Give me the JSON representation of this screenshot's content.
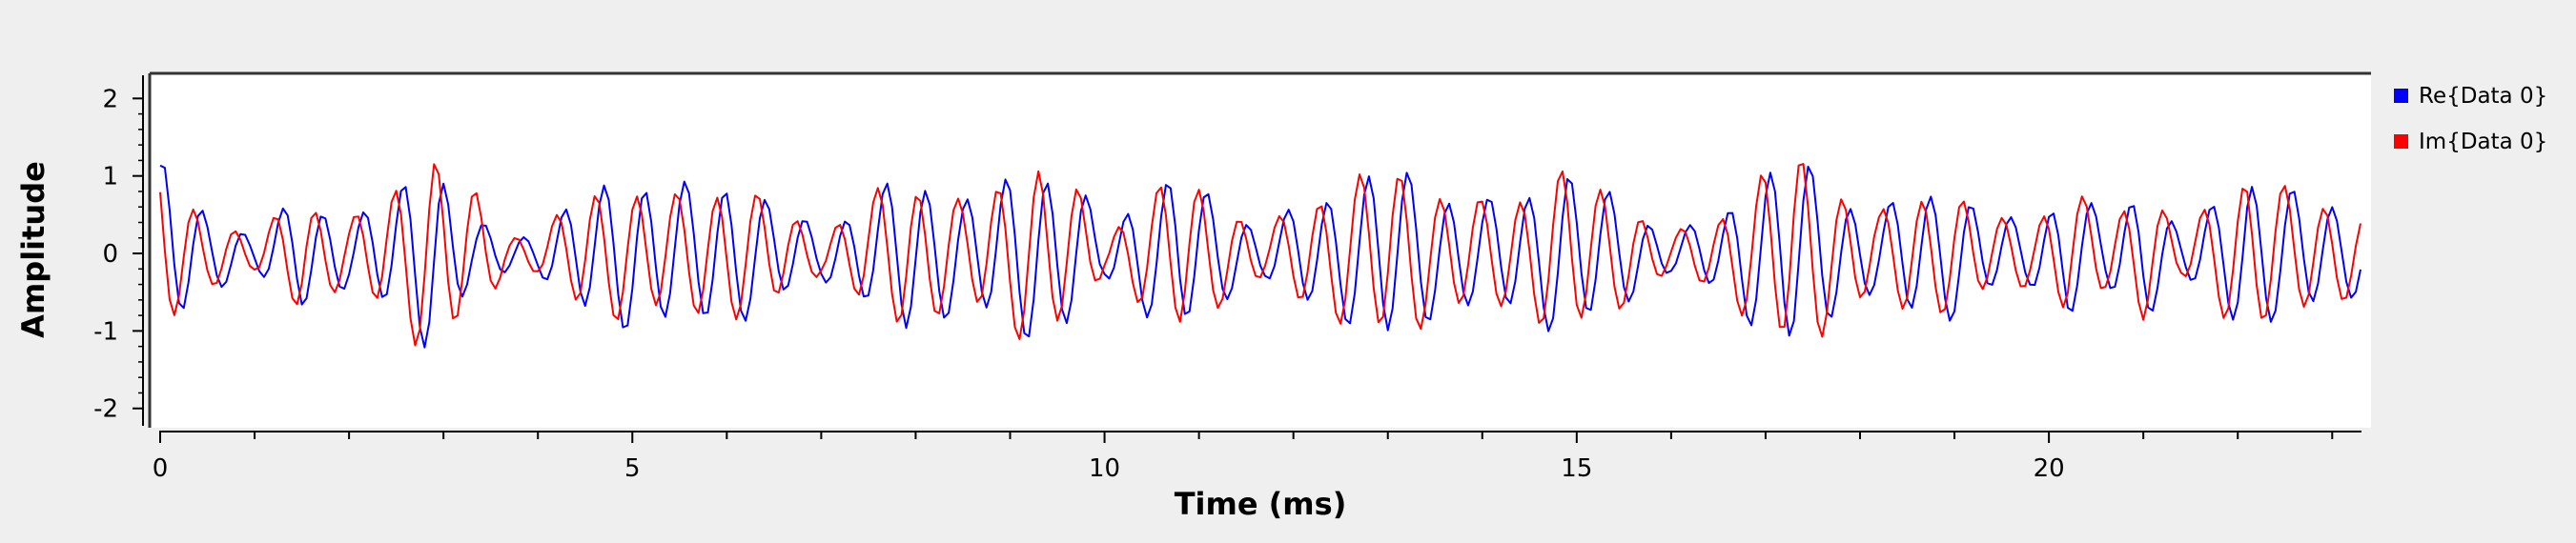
{
  "colors": {
    "background": "#efefef",
    "plot_background": "#ffffff",
    "re_series": "#0000ff",
    "im_series": "#ff0000"
  },
  "chart_data": {
    "type": "line",
    "xlabel": "Time (ms)",
    "ylabel": "Amplitude",
    "xlim": [
      0,
      23.3
    ],
    "ylim": [
      -2.2,
      2.25
    ],
    "x_ticks": [
      0,
      5,
      10,
      15,
      20
    ],
    "y_ticks": [
      2,
      1,
      0,
      -1,
      -2
    ],
    "grid": false,
    "legend_position": "right",
    "sample_spacing_ms": 0.05,
    "series": [
      {
        "name": "Re{Data 0}",
        "color": "#0000ff",
        "envelope": [
          [
            0,
            1.5
          ],
          [
            0.5,
            0.6
          ],
          [
            1,
            0.3
          ],
          [
            1.5,
            0.9
          ],
          [
            2,
            0.5
          ],
          [
            2.5,
            1.0
          ],
          [
            2.9,
            1.55
          ],
          [
            3.3,
            0.5
          ],
          [
            3.7,
            0.3
          ],
          [
            4,
            0.3
          ],
          [
            4.5,
            1.0
          ],
          [
            5,
            1.2
          ],
          [
            5.5,
            1.05
          ],
          [
            6,
            1.15
          ],
          [
            6.5,
            0.8
          ],
          [
            7,
            0.4
          ],
          [
            7.5,
            0.8
          ],
          [
            7.9,
            1.3
          ],
          [
            8.5,
            0.85
          ],
          [
            9,
            1.2
          ],
          [
            9.3,
            1.4
          ],
          [
            9.7,
            1.1
          ],
          [
            10,
            0.4
          ],
          [
            10.3,
            0.8
          ],
          [
            10.8,
            1.3
          ],
          [
            11.3,
            0.7
          ],
          [
            11.7,
            0.4
          ],
          [
            12.1,
            0.8
          ],
          [
            12.5,
            1.0
          ],
          [
            13,
            1.45
          ],
          [
            13.5,
            1.0
          ],
          [
            14,
            0.8
          ],
          [
            14.5,
            1.0
          ],
          [
            14.9,
            1.3
          ],
          [
            15.3,
            1.0
          ],
          [
            15.7,
            0.6
          ],
          [
            16,
            0.3
          ],
          [
            16.5,
            0.6
          ],
          [
            17,
            1.3
          ],
          [
            17.3,
            1.6
          ],
          [
            17.7,
            1.0
          ],
          [
            18.2,
            0.6
          ],
          [
            18.5,
            1.0
          ],
          [
            19,
            1.0
          ],
          [
            19.4,
            0.6
          ],
          [
            19.8,
            0.5
          ],
          [
            20.2,
            1.0
          ],
          [
            20.6,
            0.6
          ],
          [
            21,
            1.0
          ],
          [
            21.4,
            0.4
          ],
          [
            21.8,
            0.8
          ],
          [
            22.1,
            1.3
          ],
          [
            22.5,
            1.0
          ],
          [
            23,
            0.8
          ],
          [
            23.3,
            0.6
          ]
        ],
        "fast_freq_khz": 2.35,
        "slow_freq_khz": 0.55,
        "phase": 1.2,
        "slow_phase": 0.3
      },
      {
        "name": "Im{Data 0}",
        "color": "#ff0000",
        "envelope": [
          [
            0,
            1.4
          ],
          [
            0.5,
            0.5
          ],
          [
            1,
            0.3
          ],
          [
            1.5,
            0.9
          ],
          [
            2,
            0.5
          ],
          [
            2.5,
            1.1
          ],
          [
            2.9,
            1.6
          ],
          [
            3.3,
            1.0
          ],
          [
            3.7,
            0.3
          ],
          [
            4,
            0.3
          ],
          [
            4.5,
            1.0
          ],
          [
            5,
            1.0
          ],
          [
            5.5,
            0.9
          ],
          [
            6,
            1.1
          ],
          [
            6.5,
            0.8
          ],
          [
            7,
            0.3
          ],
          [
            7.5,
            0.9
          ],
          [
            7.9,
            1.2
          ],
          [
            8.5,
            0.8
          ],
          [
            9,
            1.2
          ],
          [
            9.3,
            1.45
          ],
          [
            9.7,
            1.0
          ],
          [
            10,
            0.3
          ],
          [
            10.3,
            0.7
          ],
          [
            10.8,
            1.3
          ],
          [
            11.3,
            0.7
          ],
          [
            11.7,
            0.4
          ],
          [
            12.1,
            0.8
          ],
          [
            12.5,
            1.1
          ],
          [
            13,
            1.4
          ],
          [
            13.5,
            1.0
          ],
          [
            14,
            0.8
          ],
          [
            14.5,
            1.0
          ],
          [
            14.9,
            1.35
          ],
          [
            15.3,
            1.0
          ],
          [
            15.7,
            0.6
          ],
          [
            16,
            0.3
          ],
          [
            16.5,
            0.6
          ],
          [
            17,
            1.3
          ],
          [
            17.3,
            1.65
          ],
          [
            17.7,
            1.1
          ],
          [
            18.2,
            0.6
          ],
          [
            18.5,
            1.0
          ],
          [
            19,
            0.9
          ],
          [
            19.4,
            0.6
          ],
          [
            19.8,
            0.5
          ],
          [
            20.2,
            1.0
          ],
          [
            20.6,
            0.6
          ],
          [
            21,
            1.0
          ],
          [
            21.4,
            0.4
          ],
          [
            21.8,
            0.9
          ],
          [
            22.1,
            1.3
          ],
          [
            22.5,
            1.0
          ],
          [
            23,
            0.8
          ],
          [
            23.3,
            0.6
          ]
        ],
        "fast_freq_khz": 2.35,
        "slow_freq_khz": 0.55,
        "phase": 2.5,
        "slow_phase": 1.4
      }
    ]
  }
}
